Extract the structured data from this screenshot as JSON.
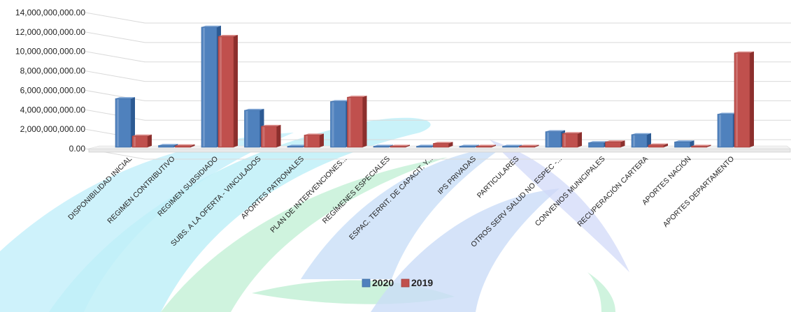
{
  "chart_data": {
    "type": "bar",
    "categories": [
      "DISPONIBILIDAD INICIAL",
      "REGIMEN CONTRIBUTIVO",
      "REGIMEN SUBSIDIADO",
      "SUBS. A LA OFERTA - VINCULADOS",
      "APORTES PATRONALES",
      "PLAN DE INTERVENCIONES...",
      "REGÍMENES ESPECIALES",
      "ESPAC. TERRIT. DE CAPACIT. Y...",
      "IPS PRIVADAS",
      "PARTICULARES",
      "OTROS SERV SALUD NO ESPEC -...",
      "CONVENIOS MUNICIPALES",
      "RECUPERACIÓN CARTERA",
      "APORTES NACIÓN",
      "APORTES DEPARTAMENTO"
    ],
    "series": [
      {
        "name": "2020",
        "color": "#4F81BD",
        "values": [
          5150000000,
          330000000,
          12500000000,
          3950000000,
          0,
          4850000000,
          20000000,
          20000000,
          10000000,
          10000000,
          1750000000,
          620000000,
          1450000000,
          700000000,
          3550000000
        ]
      },
      {
        "name": "2019",
        "color": "#C0504D",
        "values": [
          1300000000,
          300000000,
          11550000000,
          2300000000,
          1400000000,
          5300000000,
          20000000,
          550000000,
          10000000,
          10000000,
          1550000000,
          700000000,
          380000000,
          20000000,
          9850000000
        ]
      }
    ],
    "yticks": [
      "0.00",
      "2,000,000,000.00",
      "4,000,000,000.00",
      "6,000,000,000.00",
      "8,000,000,000.00",
      "10,000,000,000.00",
      "12,000,000,000.00",
      "14,000,000,000.00"
    ],
    "ylim": [
      0,
      14000000000
    ],
    "grid": true,
    "legend": "bottom"
  }
}
